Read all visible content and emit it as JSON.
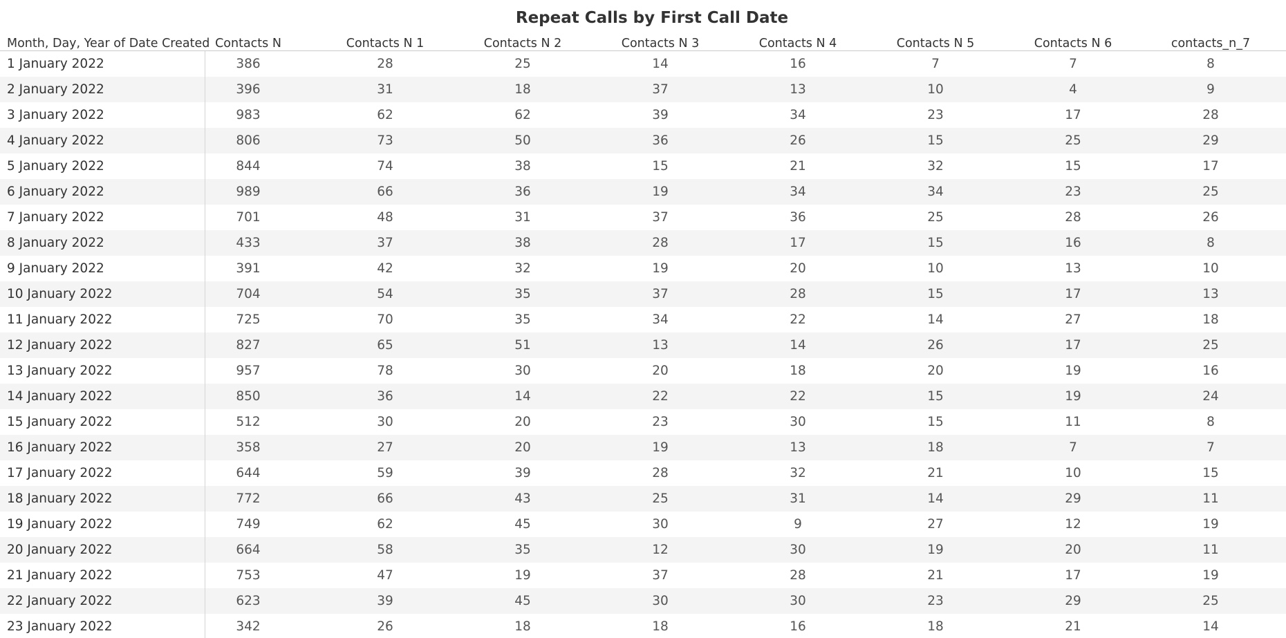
{
  "chart_data": {
    "type": "table",
    "title": "Repeat Calls by First Call Date",
    "columns": [
      "Month, Day, Year of Date Created",
      "Contacts N",
      "Contacts N 1",
      "Contacts N 2",
      "Contacts N 3",
      "Contacts N 4",
      "Contacts N 5",
      "Contacts N 6",
      "contacts_n_7"
    ],
    "rows": [
      [
        "1 January 2022",
        "386",
        "28",
        "25",
        "14",
        "16",
        "7",
        "7",
        "8"
      ],
      [
        "2 January 2022",
        "396",
        "31",
        "18",
        "37",
        "13",
        "10",
        "4",
        "9"
      ],
      [
        "3 January 2022",
        "983",
        "62",
        "62",
        "39",
        "34",
        "23",
        "17",
        "28"
      ],
      [
        "4 January 2022",
        "806",
        "73",
        "50",
        "36",
        "26",
        "15",
        "25",
        "29"
      ],
      [
        "5 January 2022",
        "844",
        "74",
        "38",
        "15",
        "21",
        "32",
        "15",
        "17"
      ],
      [
        "6 January 2022",
        "989",
        "66",
        "36",
        "19",
        "34",
        "34",
        "23",
        "25"
      ],
      [
        "7 January 2022",
        "701",
        "48",
        "31",
        "37",
        "36",
        "25",
        "28",
        "26"
      ],
      [
        "8 January 2022",
        "433",
        "37",
        "38",
        "28",
        "17",
        "15",
        "16",
        "8"
      ],
      [
        "9 January 2022",
        "391",
        "42",
        "32",
        "19",
        "20",
        "10",
        "13",
        "10"
      ],
      [
        "10 January 2022",
        "704",
        "54",
        "35",
        "37",
        "28",
        "15",
        "17",
        "13"
      ],
      [
        "11 January 2022",
        "725",
        "70",
        "35",
        "34",
        "22",
        "14",
        "27",
        "18"
      ],
      [
        "12 January 2022",
        "827",
        "65",
        "51",
        "13",
        "14",
        "26",
        "17",
        "25"
      ],
      [
        "13 January 2022",
        "957",
        "78",
        "30",
        "20",
        "18",
        "20",
        "19",
        "16"
      ],
      [
        "14 January 2022",
        "850",
        "36",
        "14",
        "22",
        "22",
        "15",
        "19",
        "24"
      ],
      [
        "15 January 2022",
        "512",
        "30",
        "20",
        "23",
        "30",
        "15",
        "11",
        "8"
      ],
      [
        "16 January 2022",
        "358",
        "27",
        "20",
        "19",
        "13",
        "18",
        "7",
        "7"
      ],
      [
        "17 January 2022",
        "644",
        "59",
        "39",
        "28",
        "32",
        "21",
        "10",
        "15"
      ],
      [
        "18 January 2022",
        "772",
        "66",
        "43",
        "25",
        "31",
        "14",
        "29",
        "11"
      ],
      [
        "19 January 2022",
        "749",
        "62",
        "45",
        "30",
        "9",
        "27",
        "12",
        "19"
      ],
      [
        "20 January 2022",
        "664",
        "58",
        "35",
        "12",
        "30",
        "19",
        "20",
        "11"
      ],
      [
        "21 January 2022",
        "753",
        "47",
        "19",
        "37",
        "28",
        "21",
        "17",
        "19"
      ],
      [
        "22 January 2022",
        "623",
        "39",
        "45",
        "30",
        "30",
        "23",
        "29",
        "25"
      ],
      [
        "23 January 2022",
        "342",
        "26",
        "18",
        "18",
        "16",
        "18",
        "21",
        "14"
      ]
    ]
  },
  "colors": {
    "text": "#333333",
    "value_text": "#555555",
    "band": "#f4f4f4",
    "divider": "#d4d4d4"
  }
}
